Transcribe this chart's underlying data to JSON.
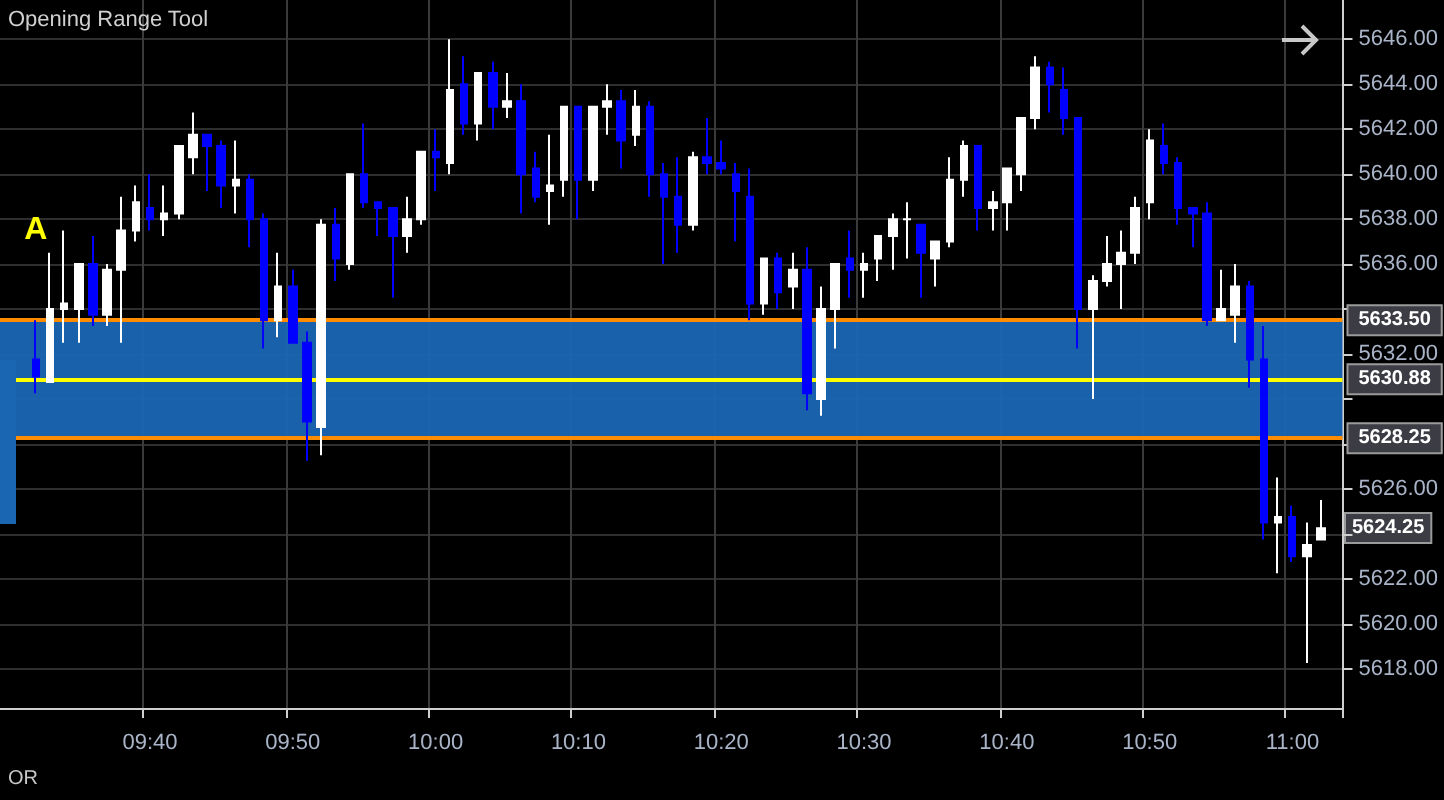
{
  "chart_data": {
    "type": "candlestick",
    "title": "Opening Range Tool",
    "categories": [
      null,
      null,
      null,
      null,
      null,
      null,
      null,
      null,
      null,
      null,
      "09:40",
      null,
      null,
      null,
      null,
      null,
      null,
      null,
      null,
      null,
      "09:50",
      null,
      null,
      null,
      null,
      null,
      null,
      null,
      null,
      null,
      "10:00",
      null,
      null,
      null,
      null,
      null,
      null,
      null,
      null,
      null,
      "10:10",
      null,
      null,
      null,
      null,
      null,
      null,
      null,
      null,
      null,
      "10:20",
      null,
      null,
      null,
      null,
      null,
      null,
      null,
      null,
      null,
      "10:30",
      null,
      null,
      null,
      null,
      null,
      null,
      null,
      null,
      null,
      "10:40",
      null,
      null,
      null,
      null,
      null,
      null,
      null,
      null,
      null,
      "10:50",
      null,
      null,
      null,
      null,
      null,
      null,
      null,
      null,
      null,
      "11:00",
      null,
      null,
      null
    ],
    "ohlc": [
      null,
      null,
      [
        5631.75,
        5633.5,
        5630.25,
        5631
      ],
      [
        5630.75,
        5636.5,
        5630.75,
        5634
      ],
      [
        5634,
        5637.5,
        5632.5,
        5634.25
      ],
      [
        5634,
        5636,
        5632.5,
        5636
      ],
      [
        5636,
        5637.25,
        5633.25,
        5633.75
      ],
      [
        5633.75,
        5636,
        5633.25,
        5635.75
      ],
      [
        5635.75,
        5639,
        5632.5,
        5637.5
      ],
      [
        5637.5,
        5639.5,
        5637,
        5638.75
      ],
      [
        5638.5,
        5640,
        5637.5,
        5638
      ],
      [
        5638,
        5639.5,
        5637.25,
        5638.25
      ],
      [
        5638.25,
        5641.25,
        5638,
        5641.25
      ],
      [
        5640.75,
        5642.75,
        5640,
        5641.75
      ],
      [
        5641.75,
        5641.75,
        5639.25,
        5641.25
      ],
      [
        5641.25,
        5641.5,
        5638.5,
        5639.5
      ],
      [
        5639.5,
        5641.5,
        5638.25,
        5639.75
      ],
      [
        5639.75,
        5640,
        5636.75,
        5638
      ],
      [
        5638,
        5638.25,
        5632.25,
        5633.5
      ],
      [
        5633.5,
        5636.5,
        5632.75,
        5635
      ],
      [
        5635,
        5635.75,
        5632.5,
        5632.5
      ],
      [
        5632.5,
        5633,
        5627.25,
        5629
      ],
      [
        5628.75,
        5638,
        5627.5,
        5637.75
      ],
      [
        5637.75,
        5638.5,
        5635.25,
        5636.25
      ],
      [
        5636,
        5640,
        5635.75,
        5640
      ],
      [
        5640,
        5642.25,
        5638.5,
        5638.75
      ],
      [
        5638.75,
        5638.75,
        5637.25,
        5638.5
      ],
      [
        5638.5,
        5638.5,
        5634.5,
        5637.25
      ],
      [
        5637.25,
        5639,
        5636.5,
        5638
      ],
      [
        5638,
        5641,
        5637.75,
        5641
      ],
      [
        5641,
        5642,
        5639.25,
        5640.75
      ],
      [
        5640.5,
        5646,
        5640,
        5643.75
      ],
      [
        5644,
        5645.25,
        5641.75,
        5642.25
      ],
      [
        5642.25,
        5644.5,
        5641.5,
        5644.5
      ],
      [
        5644.5,
        5645,
        5642,
        5643
      ],
      [
        5643,
        5644.5,
        5642.5,
        5643.25
      ],
      [
        5643.25,
        5644,
        5638.25,
        5640
      ],
      [
        5640.25,
        5641,
        5638.75,
        5639
      ],
      [
        5639.25,
        5641.75,
        5637.75,
        5639.5
      ],
      [
        5639.75,
        5643,
        5639,
        5643
      ],
      [
        5643,
        5643,
        5638,
        5639.75
      ],
      [
        5639.75,
        5643,
        5639.25,
        5643
      ],
      [
        5643,
        5644,
        5641.75,
        5643.25
      ],
      [
        5643.25,
        5643.75,
        5640.25,
        5641.5
      ],
      [
        5641.75,
        5643.75,
        5641.25,
        5643
      ],
      [
        5643,
        5643.25,
        5639,
        5640
      ],
      [
        5640,
        5640.5,
        5636,
        5639
      ],
      [
        5639,
        5640.75,
        5636.5,
        5637.75
      ],
      [
        5637.75,
        5641,
        5637.5,
        5640.75
      ],
      [
        5640.75,
        5642.5,
        5640,
        5640.5
      ],
      [
        5640.5,
        5641.5,
        5640,
        5640.25
      ],
      [
        5640,
        5640.5,
        5637,
        5639.25
      ],
      [
        5639,
        5640.25,
        5633.5,
        5634.25
      ],
      [
        5634.25,
        5636.25,
        5633.75,
        5636.25
      ],
      [
        5636.25,
        5636.5,
        5634,
        5634.75
      ],
      [
        5635,
        5636.5,
        5634,
        5635.75
      ],
      [
        5635.75,
        5636.75,
        5629.5,
        5630.25
      ],
      [
        5630,
        5635,
        5629.25,
        5634
      ],
      [
        5634,
        5636,
        5632.25,
        5636
      ],
      [
        5636.25,
        5637.5,
        5634.5,
        5635.75
      ],
      [
        5635.75,
        5636.5,
        5634.5,
        5636
      ],
      [
        5636.25,
        5637.25,
        5635.25,
        5637.25
      ],
      [
        5637.25,
        5638.25,
        5635.75,
        5638
      ],
      [
        5638,
        5638.75,
        5636.25,
        5638
      ],
      [
        5637.75,
        5637.75,
        5634.5,
        5636.5
      ],
      [
        5636.25,
        5637,
        5635,
        5637
      ],
      [
        5637,
        5640.75,
        5636.75,
        5639.75
      ],
      [
        5639.75,
        5641.5,
        5639,
        5641.25
      ],
      [
        5641.25,
        5641.25,
        5637.5,
        5638.5
      ],
      [
        5638.5,
        5639.25,
        5637.5,
        5638.75
      ],
      [
        5638.75,
        5640.25,
        5637.5,
        5640.25
      ],
      [
        5640,
        5642.5,
        5639.25,
        5642.5
      ],
      [
        5642.5,
        5645.25,
        5642,
        5644.75
      ],
      [
        5644.75,
        5645,
        5642.75,
        5644
      ],
      [
        5643.75,
        5644.75,
        5641.75,
        5642.5
      ],
      [
        5642.5,
        5642.5,
        5632.25,
        5634
      ],
      [
        5634,
        5635.5,
        5630,
        5635.25
      ],
      [
        5635.25,
        5637.25,
        5635,
        5636
      ],
      [
        5636,
        5637.5,
        5634,
        5636.5
      ],
      [
        5636.5,
        5639,
        5636,
        5638.5
      ],
      [
        5638.75,
        5642,
        5638,
        5641.5
      ],
      [
        5641.25,
        5642.25,
        5640,
        5640.5
      ],
      [
        5640.5,
        5640.75,
        5637.75,
        5638.5
      ],
      [
        5638.5,
        5638.5,
        5636.75,
        5638.25
      ],
      [
        5638.25,
        5638.75,
        5633.25,
        5633.5
      ],
      [
        5633.5,
        5635.75,
        5633.5,
        5634
      ],
      [
        5633.75,
        5636,
        5632.5,
        5635
      ],
      [
        5635,
        5635.25,
        5630.5,
        5631.75
      ],
      [
        5631.75,
        5633.25,
        5623.75,
        5624.5
      ],
      [
        5624.5,
        5626.5,
        5622.25,
        5624.75
      ],
      [
        5624.75,
        5625.25,
        5622.75,
        5623
      ],
      [
        5623,
        5624.5,
        5618.25,
        5623.5
      ],
      [
        5623.75,
        5625.5,
        5623.75,
        5624.25
      ],
      null
    ],
    "colors": [
      null,
      null,
      "#0000ff",
      "#ffffff",
      "#ffffff",
      "#ffffff",
      "#0000ff",
      "#ffffff",
      "#ffffff",
      "#ffffff",
      "#0000ff",
      "#ffffff",
      "#ffffff",
      "#ffffff",
      "#0000ff",
      "#0000ff",
      "#ffffff",
      "#0000ff",
      "#0000ff",
      "#ffffff",
      "#0000ff",
      "#0000ff",
      "#ffffff",
      "#0000ff",
      "#ffffff",
      "#0000ff",
      "#0000ff",
      "#0000ff",
      "#ffffff",
      "#ffffff",
      "#0000ff",
      "#ffffff",
      "#0000ff",
      "#ffffff",
      "#0000ff",
      "#ffffff",
      "#0000ff",
      "#0000ff",
      "#ffffff",
      "#ffffff",
      "#0000ff",
      "#ffffff",
      "#ffffff",
      "#0000ff",
      "#ffffff",
      "#0000ff",
      "#0000ff",
      "#0000ff",
      "#ffffff",
      "#0000ff",
      "#0000ff",
      "#0000ff",
      "#0000ff",
      "#ffffff",
      "#0000ff",
      "#ffffff",
      "#0000ff",
      "#ffffff",
      "#ffffff",
      "#0000ff",
      "#ffffff",
      "#ffffff",
      "#ffffff",
      "#ffffff",
      "#0000ff",
      "#ffffff",
      "#ffffff",
      "#ffffff",
      "#0000ff",
      "#ffffff",
      "#ffffff",
      "#ffffff",
      "#ffffff",
      "#0000ff",
      "#0000ff",
      "#0000ff",
      "#ffffff",
      "#ffffff",
      "#ffffff",
      "#ffffff",
      "#ffffff",
      "#0000ff",
      "#0000ff",
      "#0000ff",
      "#0000ff",
      "#ffffff",
      "#ffffff",
      "#0000ff",
      "#0000ff",
      "#ffffff",
      "#0000ff",
      "#ffffff",
      "#ffffff",
      null
    ],
    "ylim": [
      5616.25,
      5647.75
    ],
    "yticks": [
      {
        "value": 5618,
        "label": "5618.00"
      },
      {
        "value": 5620,
        "label": "5620.00"
      },
      {
        "value": 5622,
        "label": "5622.00"
      },
      {
        "value": 5624,
        "label": null
      },
      {
        "value": 5626,
        "label": "5626.00"
      },
      {
        "value": 5628,
        "label": null
      },
      {
        "value": 5630,
        "label": null
      },
      {
        "value": 5632,
        "label": "5632.00"
      },
      {
        "value": 5634,
        "label": null
      },
      {
        "value": 5636,
        "label": "5636.00"
      },
      {
        "value": 5638,
        "label": "5638.00"
      },
      {
        "value": 5640,
        "label": "5640.00"
      },
      {
        "value": 5642,
        "label": "5642.00"
      },
      {
        "value": 5644,
        "label": "5644.00"
      },
      {
        "value": 5646,
        "label": "5646.00"
      }
    ],
    "grid": true,
    "bands": [
      {
        "axis": "y",
        "from": 5628.25,
        "to": 5633.5,
        "color": "#1a66b3"
      }
    ],
    "ref_lines": [
      {
        "axis": "y",
        "value": 5633.5,
        "label": "5633.50",
        "color": "#ff8c00"
      },
      {
        "axis": "y",
        "value": 5630.88,
        "label": "5630.88",
        "color": "#ffff00"
      },
      {
        "axis": "y",
        "value": 5628.25,
        "label": "5628.25",
        "color": "#ff8c00"
      }
    ],
    "annotations": [
      "OR",
      "A",
      "5624.25"
    ]
  }
}
